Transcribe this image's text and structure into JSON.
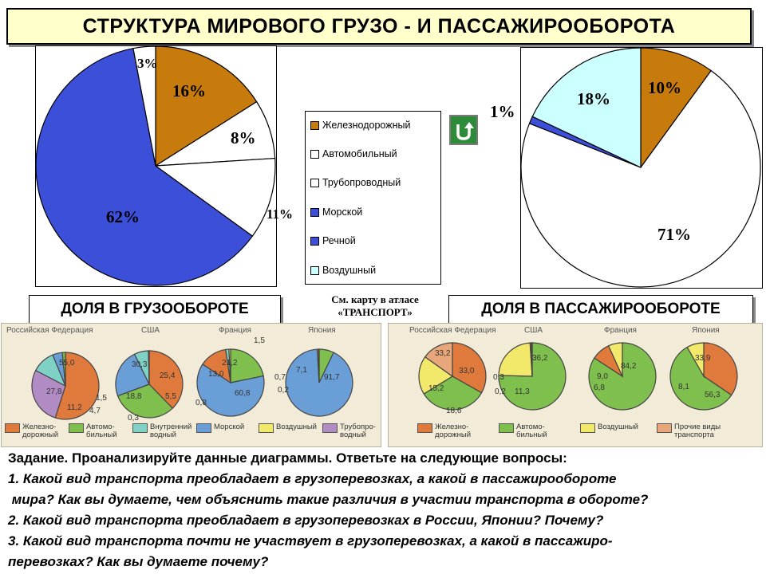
{
  "title": "Структура мирового грузо - и пассажирооборота",
  "chart_data": [
    {
      "type": "pie",
      "name": "cargo",
      "categories": [
        "Железнодорожный",
        "Автомобильный",
        "Трубопроводный",
        "Морской",
        "Воздушный"
      ],
      "values": [
        16,
        8,
        11,
        62,
        3
      ],
      "labels": [
        "16%",
        "8%",
        "11%",
        "62%",
        "3%"
      ],
      "colors": [
        "#c67b0c",
        "#ffffff",
        "#ffffff",
        "#3b4fd8",
        "#ffffff"
      ],
      "caption": "ДОЛЯ В ГРУЗООБОРОТЕ"
    },
    {
      "type": "pie",
      "name": "passenger",
      "categories": [
        "Железнодорожный",
        "Автомобильный",
        "Морской",
        "Воздушный"
      ],
      "values": [
        10,
        71,
        1,
        18
      ],
      "labels": [
        "10%",
        "71%",
        "1%",
        "18%"
      ],
      "colors": [
        "#c67b0c",
        "#ffffff",
        "#3b4fd8",
        "#ccffff"
      ],
      "caption": "ДОЛЯ В ПАССАЖИРООБОРОТЕ"
    },
    {
      "type": "pie",
      "name": "atlas-cargo",
      "countries": [
        {
          "name": "Российская Федерация",
          "labels": [
            "55,0",
            "27,8",
            "11,2",
            "4,7",
            "1,5"
          ]
        },
        {
          "name": "США",
          "labels": [
            "30,3",
            "25,4",
            "18,8",
            "5,5",
            "0,3"
          ]
        },
        {
          "name": "Франция",
          "labels": [
            "21,2",
            "13,0",
            "60,8",
            "1,5",
            "0,8"
          ]
        },
        {
          "name": "Япония",
          "labels": [
            "0,7",
            "7,1",
            "91,7",
            "0,2"
          ]
        }
      ],
      "legend": [
        "Железно-дорожный",
        "Автомо-бильный",
        "Внутренний водный",
        "Морской",
        "Воздушный",
        "Трубопро-водный"
      ],
      "legend_colors": [
        "#e07a3c",
        "#7fbf4d",
        "#7fd1c6",
        "#6a9ed6",
        "#f2e86a",
        "#b08bc4"
      ]
    },
    {
      "type": "pie",
      "name": "atlas-passenger",
      "countries": [
        {
          "name": "Российская Федерация",
          "labels": [
            "33,2",
            "33,0",
            "18,6",
            "15,2"
          ]
        },
        {
          "name": "США",
          "labels": [
            "36,2",
            "11,3",
            "0,3",
            "0,2"
          ]
        },
        {
          "name": "Франция",
          "labels": [
            "84,2",
            "9,0",
            "6,8"
          ]
        },
        {
          "name": "Япония",
          "labels": [
            "33,9",
            "56,3",
            "8,1"
          ]
        }
      ],
      "legend": [
        "Железно-дорожный",
        "Автомо-бильный",
        "Воздушный",
        "Прочие виды транспорта"
      ],
      "legend_colors": [
        "#e07a3c",
        "#7fbf4d",
        "#f2e86a",
        "#e8a77a"
      ]
    }
  ],
  "legend": {
    "items": [
      {
        "label": "Железнодорожный",
        "color": "#c67b0c"
      },
      {
        "label": "Автомобильный",
        "color": "#ffffff"
      },
      {
        "label": "Трубопроводный",
        "color": "#ffffff"
      },
      {
        "label": "Морской",
        "color": "#3b4fd8"
      },
      {
        "label": "Речной",
        "color": "#3b4fd8"
      },
      {
        "label": "Воздушный",
        "color": "#ccffff"
      }
    ]
  },
  "atlas_note": [
    "См. карту в атласе",
    "«ТРАНСПОРТ»"
  ],
  "task": {
    "heading": "Задание. Проанализируйте данные диаграммы. Ответьте на следующие вопросы:",
    "questions": [
      "1. Какой вид транспорта преобладает в грузоперевозках, а какой в пассажирообороте",
      " мира? Как вы думаете, чем объяснить такие различия в участии транспорта в обороте?",
      "2. Какой вид транспорта преобладает в грузоперевозках в России, Японии? Почему?",
      "3. Какой вид транспорта почти не участвует в грузоперевозках, а какой в пассажиро-",
      "перевозках? Как вы думаете почему?"
    ]
  }
}
